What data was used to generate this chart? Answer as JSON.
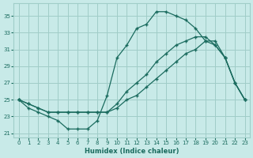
{
  "xlabel": "Humidex (Indice chaleur)",
  "xlim": [
    -0.5,
    23.5
  ],
  "ylim": [
    20.5,
    36.5
  ],
  "yticks": [
    21,
    23,
    25,
    27,
    29,
    31,
    33,
    35
  ],
  "xticks": [
    0,
    1,
    2,
    3,
    4,
    5,
    6,
    7,
    8,
    9,
    10,
    11,
    12,
    13,
    14,
    15,
    16,
    17,
    18,
    19,
    20,
    21,
    22,
    23
  ],
  "bg_color": "#c8eae8",
  "grid_color": "#a0cdc8",
  "line_color": "#1a6b5e",
  "line1_x": [
    0,
    1,
    2,
    3,
    4,
    5,
    6,
    7,
    8,
    9,
    10,
    11,
    12,
    13,
    14,
    15,
    16,
    17,
    18,
    19,
    20,
    21,
    22,
    23
  ],
  "line1_y": [
    25.0,
    24.0,
    23.5,
    23.0,
    22.5,
    21.5,
    21.5,
    21.5,
    22.5,
    25.5,
    30.0,
    31.5,
    33.5,
    34.0,
    35.5,
    35.5,
    35.0,
    34.5,
    33.5,
    32.0,
    31.5,
    30.0,
    27.0,
    25.0
  ],
  "line2_x": [
    0,
    1,
    2,
    3,
    4,
    5,
    6,
    7,
    8,
    9,
    10,
    11,
    12,
    13,
    14,
    15,
    16,
    17,
    18,
    19,
    20,
    21,
    22,
    23
  ],
  "line2_y": [
    25.0,
    24.5,
    24.0,
    23.5,
    23.5,
    23.5,
    23.5,
    23.5,
    23.5,
    23.5,
    24.5,
    26.0,
    27.0,
    28.0,
    29.5,
    30.5,
    31.5,
    32.0,
    32.5,
    32.5,
    31.5,
    30.0,
    27.0,
    25.0
  ],
  "line3_x": [
    0,
    1,
    2,
    3,
    4,
    5,
    6,
    7,
    8,
    9,
    10,
    11,
    12,
    13,
    14,
    15,
    16,
    17,
    18,
    19,
    20,
    21,
    22,
    23
  ],
  "line3_y": [
    25.0,
    24.5,
    24.0,
    23.5,
    23.5,
    23.5,
    23.5,
    23.5,
    23.5,
    23.5,
    24.0,
    25.0,
    25.5,
    26.5,
    27.5,
    28.5,
    29.5,
    30.5,
    31.0,
    32.0,
    32.0,
    30.0,
    27.0,
    25.0
  ]
}
